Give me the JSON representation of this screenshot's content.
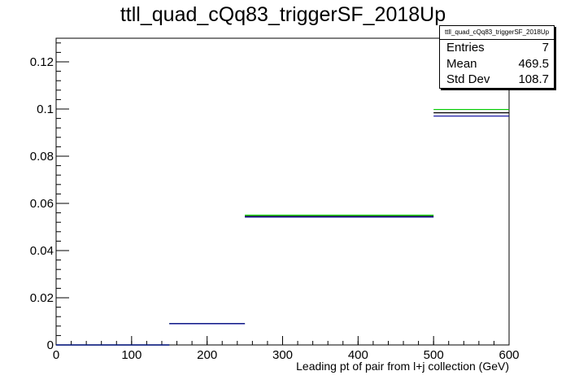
{
  "chart_data": {
    "type": "step",
    "title": "ttll_quad_cQq83_triggerSF_2018Up",
    "xlabel": "Leading pt of pair from l+j collection (GeV)",
    "ylabel": "",
    "xlim": [
      0,
      600
    ],
    "ylim": [
      0,
      0.13
    ],
    "x_ticks": [
      "0",
      "100",
      "200",
      "300",
      "400",
      "500",
      "600"
    ],
    "y_ticks": [
      "0",
      "0.02",
      "0.04",
      "0.06",
      "0.08",
      "0.1",
      "0.12"
    ],
    "bin_edges": [
      0,
      20,
      40,
      60,
      80,
      100,
      120,
      150,
      250,
      500,
      600
    ],
    "series": [
      {
        "color": "#00cc00",
        "values": [
          0,
          0,
          0,
          0,
          0,
          0,
          0,
          0.009,
          0.055,
          0.0998
        ]
      },
      {
        "color": "#000000",
        "values": [
          0,
          0,
          0,
          0,
          0,
          0,
          0,
          0.009,
          0.0545,
          0.0984
        ]
      },
      {
        "color": "#000099",
        "values": [
          0,
          0,
          0,
          0,
          0,
          0,
          0,
          0.009,
          0.0542,
          0.097
        ]
      }
    ],
    "stats": {
      "name": "ttll_quad_cQq83_triggerSF_2018Up",
      "rows": [
        {
          "label": "Entries",
          "value": "7"
        },
        {
          "label": "Mean",
          "value": "469.5"
        },
        {
          "label": "Std Dev",
          "value": "108.7"
        }
      ]
    }
  }
}
